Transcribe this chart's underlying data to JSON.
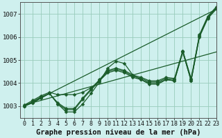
{
  "title": "Graphe pression niveau de la mer (hPa)",
  "bg_color": "#cff0ee",
  "grid_color": "#99ccbb",
  "line_color": "#1a5c2a",
  "xlim": [
    -0.5,
    23
  ],
  "ylim": [
    1002.5,
    1007.5
  ],
  "yticks": [
    1003,
    1004,
    1005,
    1006,
    1007
  ],
  "xticks": [
    0,
    1,
    2,
    3,
    4,
    5,
    6,
    7,
    8,
    9,
    10,
    11,
    12,
    13,
    14,
    15,
    16,
    17,
    18,
    19,
    20,
    21,
    22,
    23
  ],
  "series": [
    [
      1003.0,
      1003.15,
      1003.35,
      1003.55,
      1003.1,
      1002.75,
      1002.75,
      1003.1,
      1003.55,
      1004.05,
      1004.65,
      1004.95,
      1004.85,
      1004.35,
      1004.15,
      1003.95,
      1003.95,
      1004.15,
      1004.1,
      1005.35,
      1004.1,
      1006.05,
      1006.85,
      1007.25
    ],
    [
      1003.0,
      1003.15,
      1003.35,
      1003.55,
      1003.1,
      1002.85,
      1002.85,
      1003.3,
      1003.7,
      1004.1,
      1004.5,
      1004.6,
      1004.5,
      1004.3,
      1004.2,
      1004.05,
      1004.05,
      1004.2,
      1004.15,
      1005.4,
      1004.15,
      1006.05,
      1006.85,
      1007.25
    ],
    [
      1003.0,
      1003.2,
      1003.4,
      1003.55,
      1003.15,
      1002.9,
      1002.9,
      1003.35,
      1003.75,
      1004.15,
      1004.55,
      1004.65,
      1004.55,
      1004.35,
      1004.25,
      1004.1,
      1004.1,
      1004.25,
      1004.2,
      1005.4,
      1004.2,
      1006.1,
      1006.9,
      1007.3
    ],
    [
      1003.05,
      1003.25,
      1003.45,
      1003.6,
      1003.5,
      1003.5,
      1003.5,
      1003.6,
      1003.8,
      1004.1,
      1004.45,
      1004.55,
      1004.45,
      1004.25,
      1004.15,
      1004.0,
      1004.0,
      1004.15,
      1004.1,
      1005.35,
      1004.1,
      1006.0,
      1006.8,
      1007.2
    ]
  ],
  "smooth_series": [
    {
      "x": [
        0,
        23
      ],
      "y": [
        1003.0,
        1007.2
      ]
    },
    {
      "x": [
        0,
        23
      ],
      "y": [
        1003.05,
        1005.35
      ]
    }
  ],
  "marker": "D",
  "markersize": 2.5,
  "linewidth": 0.9,
  "title_fontsize": 7.5,
  "tick_fontsize": 6.0
}
